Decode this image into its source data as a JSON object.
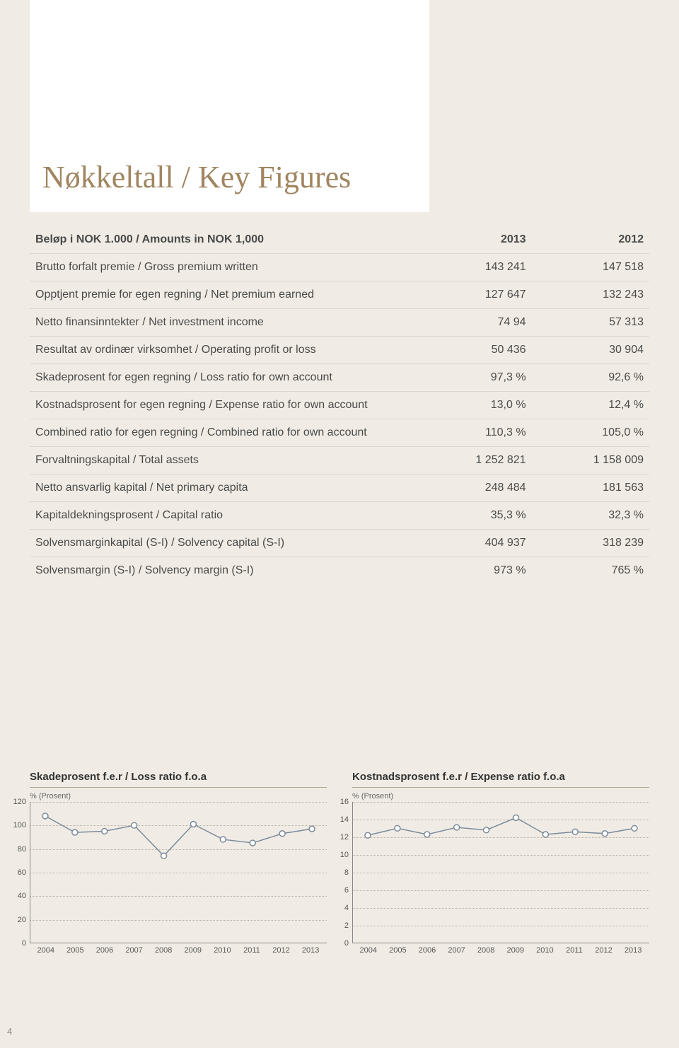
{
  "title": "Nøkkeltall / Key Figures",
  "page_number": "4",
  "table": {
    "header": {
      "label": "Beløp i NOK 1.000 / Amounts in NOK 1,000",
      "col1": "2013",
      "col2": "2012"
    },
    "rows": [
      {
        "label": "Brutto forfalt premie / Gross premium written",
        "v1": "143 241",
        "v2": "147 518"
      },
      {
        "label": "Opptjent premie for egen regning / Net premium earned",
        "v1": "127 647",
        "v2": "132 243"
      },
      {
        "label": "Netto finansinntekter / Net investment income",
        "v1": "74 94",
        "v2": "57 313"
      },
      {
        "label": "Resultat av ordinær virksomhet / Operating profit or loss",
        "v1": "50 436",
        "v2": "30 904"
      },
      {
        "label": "Skadeprosent for egen regning / Loss ratio for own account",
        "v1": "97,3 %",
        "v2": "92,6 %"
      },
      {
        "label": "Kostnadsprosent for egen regning / Expense ratio for own account",
        "v1": "13,0 %",
        "v2": "12,4 %"
      },
      {
        "label": "Combined ratio for egen regning / Combined ratio for own account",
        "v1": "110,3 %",
        "v2": "105,0 %"
      },
      {
        "label": "Forvaltningskapital / Total assets",
        "v1": "1 252 821",
        "v2": "1 158 009"
      },
      {
        "label": "Netto ansvarlig kapital / Net primary capita",
        "v1": "248 484",
        "v2": "181 563"
      },
      {
        "label": "Kapitaldekningsprosent / Capital ratio",
        "v1": "35,3 %",
        "v2": "32,3 %"
      },
      {
        "label": "Solvensmarginkapital (S-I) / Solvency capital (S-I)",
        "v1": "404 937",
        "v2": "318 239"
      },
      {
        "label": "Solvensmargin (S-I) / Solvency margin (S-I)",
        "v1": "973 %",
        "v2": "765 %"
      }
    ]
  },
  "chart_left": {
    "type": "line",
    "title": "Skadeprosent f.e.r / Loss ratio f.o.a",
    "ylabel": "% (Prosent)",
    "categories": [
      "2004",
      "2005",
      "2006",
      "2007",
      "2008",
      "2009",
      "2010",
      "2011",
      "2012",
      "2013"
    ],
    "values": [
      108,
      94,
      95,
      100,
      74,
      101,
      88,
      85,
      93,
      97
    ],
    "ylim": [
      0,
      120
    ],
    "yticks": [
      0,
      20,
      40,
      60,
      80,
      100,
      120
    ],
    "line_color": "#7a8a9a",
    "marker_fill": "#ffffff",
    "marker_stroke": "#7a8a9a",
    "marker_radius": 4,
    "grid_color": "#b8b0a0",
    "background_color": "#f0ece5",
    "axis_color": "#888888",
    "title_fontsize": 15,
    "label_fontsize": 11
  },
  "chart_right": {
    "type": "line",
    "title": "Kostnadsprosent f.e.r / Expense ratio f.o.a",
    "ylabel": "% (Prosent)",
    "categories": [
      "2004",
      "2005",
      "2006",
      "2007",
      "2008",
      "2009",
      "2010",
      "2011",
      "2012",
      "2013"
    ],
    "values": [
      12.2,
      13.0,
      12.3,
      13.1,
      12.8,
      14.2,
      12.3,
      12.6,
      12.4,
      13.0
    ],
    "ylim": [
      0,
      16
    ],
    "yticks": [
      0,
      2,
      4,
      6,
      8,
      10,
      12,
      14,
      16
    ],
    "line_color": "#7a8a9a",
    "marker_fill": "#ffffff",
    "marker_stroke": "#7a8a9a",
    "marker_radius": 4,
    "grid_color": "#b8b0a0",
    "background_color": "#f0ece5",
    "axis_color": "#888888",
    "title_fontsize": 15,
    "label_fontsize": 11
  }
}
